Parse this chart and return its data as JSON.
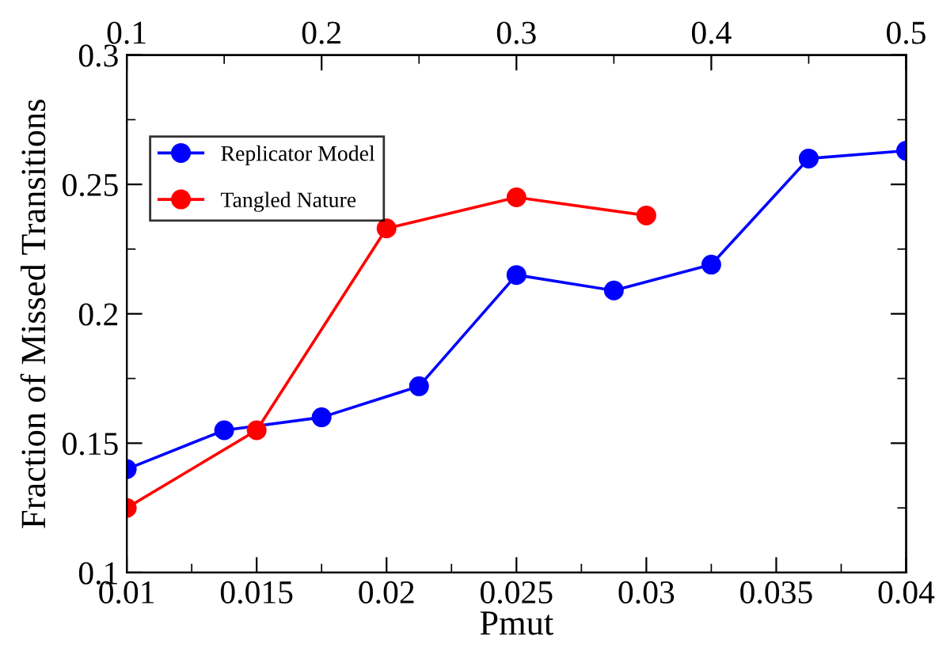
{
  "chart_data": {
    "type": "line",
    "xlabel": "Pmut",
    "ylabel": "Fraction of Missed Transitions",
    "series": [
      {
        "name": "Replicator Model",
        "color": "#0000ff",
        "x": [
          0.01,
          0.01375,
          0.0175,
          0.02125,
          0.025,
          0.02875,
          0.0325,
          0.03625,
          0.04
        ],
        "values": [
          0.14,
          0.155,
          0.16,
          0.172,
          0.215,
          0.209,
          0.219,
          0.26,
          0.263
        ]
      },
      {
        "name": "Tangled Nature",
        "color": "#ff0000",
        "x": [
          0.01,
          0.015,
          0.02,
          0.025,
          0.03
        ],
        "values": [
          0.125,
          0.155,
          0.233,
          0.245,
          0.238
        ]
      }
    ],
    "xlim": [
      0.01,
      0.04
    ],
    "xticks": [
      0.01,
      0.015,
      0.02,
      0.025,
      0.03,
      0.035,
      0.04
    ],
    "x2lim": [
      0.1,
      0.5
    ],
    "x2ticks": [
      0.1,
      0.2,
      0.3,
      0.4,
      0.5
    ],
    "ylim": [
      0.1,
      0.3
    ],
    "yticks": [
      0.1,
      0.15,
      0.2,
      0.25,
      0.3
    ],
    "marker": "circle",
    "line_style": "solid",
    "legend": "top left",
    "grid": false
  }
}
